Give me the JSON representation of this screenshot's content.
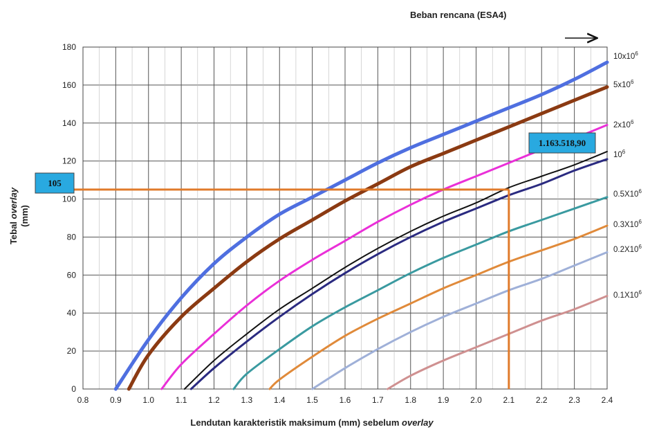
{
  "chart_data": {
    "type": "line",
    "xlabel_main": "Lendutan karakteristik maksimum (mm) sebelum ",
    "xlabel_italic": "overlay",
    "ylabel_main": "Tebal ",
    "ylabel_italic": "overlay",
    "ylabel_unit": "(mm)",
    "legend_title": "Beban rencana (ESA4)",
    "xlim": [
      0.8,
      2.4
    ],
    "ylim": [
      0,
      180
    ],
    "x_ticks": [
      "0.8",
      "0.9",
      "1.0",
      "1.1",
      "1.2",
      "1.3",
      "1.4",
      "1.5",
      "1.6",
      "1.7",
      "1.8",
      "1.9",
      "2.0",
      "2.1",
      "2.2",
      "2.3",
      "2.4"
    ],
    "y_ticks": [
      "0",
      "20",
      "40",
      "60",
      "80",
      "100",
      "120",
      "140",
      "160",
      "180"
    ],
    "grid": true,
    "series": [
      {
        "name": "10x10",
        "exp": "6",
        "color": "#4f6fe0",
        "width": 5,
        "points": [
          [
            0.9,
            0
          ],
          [
            1.0,
            26
          ],
          [
            1.1,
            48
          ],
          [
            1.2,
            66
          ],
          [
            1.3,
            80
          ],
          [
            1.4,
            92
          ],
          [
            1.5,
            101
          ],
          [
            1.6,
            110
          ],
          [
            1.7,
            119
          ],
          [
            1.8,
            127
          ],
          [
            1.9,
            134
          ],
          [
            2.0,
            141
          ],
          [
            2.1,
            148
          ],
          [
            2.2,
            155
          ],
          [
            2.3,
            163
          ],
          [
            2.4,
            172
          ]
        ]
      },
      {
        "name": "5x10",
        "exp": "6",
        "color": "#8b3a12",
        "width": 5,
        "points": [
          [
            0.94,
            0
          ],
          [
            1.0,
            18
          ],
          [
            1.1,
            38
          ],
          [
            1.2,
            53
          ],
          [
            1.3,
            67
          ],
          [
            1.4,
            79
          ],
          [
            1.5,
            89
          ],
          [
            1.6,
            99
          ],
          [
            1.7,
            108
          ],
          [
            1.8,
            117
          ],
          [
            1.9,
            124
          ],
          [
            2.0,
            131
          ],
          [
            2.1,
            138
          ],
          [
            2.2,
            145
          ],
          [
            2.3,
            152
          ],
          [
            2.4,
            159
          ]
        ]
      },
      {
        "name": "2x10",
        "exp": "6",
        "color": "#ea2fd8",
        "width": 3,
        "points": [
          [
            1.04,
            0
          ],
          [
            1.1,
            13
          ],
          [
            1.2,
            29
          ],
          [
            1.3,
            44
          ],
          [
            1.4,
            57
          ],
          [
            1.5,
            68
          ],
          [
            1.6,
            78
          ],
          [
            1.7,
            88
          ],
          [
            1.8,
            97
          ],
          [
            1.9,
            105
          ],
          [
            2.0,
            112
          ],
          [
            2.1,
            119
          ],
          [
            2.2,
            126
          ],
          [
            2.3,
            132
          ],
          [
            2.4,
            139
          ]
        ]
      },
      {
        "name": "10",
        "exp": "6",
        "color": "#111111",
        "width": 2,
        "points": [
          [
            1.11,
            0
          ],
          [
            1.2,
            15
          ],
          [
            1.3,
            29
          ],
          [
            1.4,
            42
          ],
          [
            1.5,
            53
          ],
          [
            1.6,
            64
          ],
          [
            1.7,
            74
          ],
          [
            1.8,
            83
          ],
          [
            1.9,
            91
          ],
          [
            2.0,
            98
          ],
          [
            2.1,
            106
          ],
          [
            2.2,
            112
          ],
          [
            2.3,
            118
          ],
          [
            2.4,
            125
          ]
        ]
      },
      {
        "name": "",
        "exp": "",
        "color": "#2a2a80",
        "width": 3,
        "points": [
          [
            1.13,
            0
          ],
          [
            1.2,
            11
          ],
          [
            1.3,
            25
          ],
          [
            1.4,
            38
          ],
          [
            1.5,
            50
          ],
          [
            1.6,
            61
          ],
          [
            1.7,
            71
          ],
          [
            1.8,
            80
          ],
          [
            1.9,
            88
          ],
          [
            2.0,
            95
          ],
          [
            2.1,
            102
          ],
          [
            2.2,
            108
          ],
          [
            2.3,
            115
          ],
          [
            2.4,
            121
          ]
        ]
      },
      {
        "name": "0.5X10",
        "exp": "6",
        "color": "#3a9aa0",
        "width": 3,
        "points": [
          [
            1.26,
            0
          ],
          [
            1.3,
            8
          ],
          [
            1.4,
            21
          ],
          [
            1.5,
            33
          ],
          [
            1.6,
            43
          ],
          [
            1.7,
            52
          ],
          [
            1.8,
            61
          ],
          [
            1.9,
            69
          ],
          [
            2.0,
            76
          ],
          [
            2.1,
            83
          ],
          [
            2.2,
            89
          ],
          [
            2.3,
            95
          ],
          [
            2.4,
            101
          ]
        ]
      },
      {
        "name": "0.3X10",
        "exp": "6",
        "color": "#e08a3a",
        "width": 3,
        "points": [
          [
            1.37,
            0
          ],
          [
            1.4,
            5
          ],
          [
            1.5,
            17
          ],
          [
            1.6,
            28
          ],
          [
            1.7,
            37
          ],
          [
            1.8,
            45
          ],
          [
            1.9,
            53
          ],
          [
            2.0,
            60
          ],
          [
            2.1,
            67
          ],
          [
            2.2,
            73
          ],
          [
            2.3,
            79
          ],
          [
            2.4,
            86
          ]
        ]
      },
      {
        "name": "0.2X10",
        "exp": "6",
        "color": "#9fb0d8",
        "width": 3,
        "points": [
          [
            1.5,
            0
          ],
          [
            1.6,
            11
          ],
          [
            1.7,
            21
          ],
          [
            1.8,
            30
          ],
          [
            1.9,
            38
          ],
          [
            2.0,
            45
          ],
          [
            2.1,
            52
          ],
          [
            2.2,
            58
          ],
          [
            2.3,
            65
          ],
          [
            2.4,
            72
          ]
        ]
      },
      {
        "name": "0.1X10",
        "exp": "6",
        "color": "#cf9090",
        "width": 3,
        "points": [
          [
            1.73,
            0
          ],
          [
            1.8,
            7
          ],
          [
            1.9,
            15
          ],
          [
            2.0,
            22
          ],
          [
            2.1,
            29
          ],
          [
            2.2,
            36
          ],
          [
            2.3,
            42
          ],
          [
            2.4,
            49
          ]
        ]
      }
    ],
    "annotations": {
      "y_value_label": "105",
      "y_value": 105,
      "x_value": 2.1,
      "esa_value_label": "1.163.518,90",
      "guide_color": "#e07a2a",
      "box_color": "#29a9e0"
    }
  }
}
